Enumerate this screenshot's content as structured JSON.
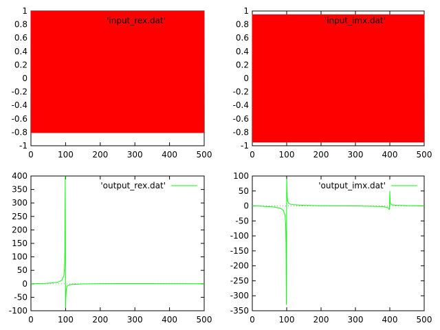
{
  "chart_data": [
    {
      "type": "line",
      "legend": "'input_rex.dat'",
      "legend_position": "top-right",
      "color": "#ff0000",
      "xlim": [
        0,
        500
      ],
      "ylim": [
        -1,
        1
      ],
      "xticks": [
        0,
        100,
        200,
        300,
        400,
        500
      ],
      "yticks": [
        -1,
        -0.8,
        -0.6,
        -0.4,
        -0.2,
        0,
        0.2,
        0.4,
        0.6,
        0.8,
        1
      ],
      "xtick_labels": [
        "0",
        "100",
        "200",
        "300",
        "400",
        "500"
      ],
      "ytick_labels": [
        "-1",
        "-0.8",
        "-0.6",
        "-0.4",
        "-0.2",
        "0",
        "0.2",
        "0.4",
        "0.6",
        "0.8",
        "1"
      ],
      "signal": {
        "form": "oscillation",
        "samples": 500,
        "high": 1.0,
        "low": -0.81
      }
    },
    {
      "type": "line",
      "legend": "'input_imx.dat'",
      "legend_position": "top-right",
      "color": "#ff0000",
      "xlim": [
        0,
        500
      ],
      "ylim": [
        -1,
        1
      ],
      "xticks": [
        0,
        100,
        200,
        300,
        400,
        500
      ],
      "yticks": [
        -1,
        -0.8,
        -0.6,
        -0.4,
        -0.2,
        0,
        0.2,
        0.4,
        0.6,
        0.8,
        1
      ],
      "xtick_labels": [
        "0",
        "100",
        "200",
        "300",
        "400",
        "500"
      ],
      "ytick_labels": [
        "-1",
        "-0.8",
        "-0.6",
        "-0.4",
        "-0.2",
        "0",
        "0.2",
        "0.4",
        "0.6",
        "0.8",
        "1"
      ],
      "signal": {
        "form": "oscillation",
        "samples": 500,
        "high": 0.95,
        "low": -0.95
      }
    },
    {
      "type": "line",
      "legend": "'output_rex.dat'",
      "legend_position": "top-right",
      "color": "#00ff00",
      "xlim": [
        0,
        500
      ],
      "ylim": [
        -100,
        400
      ],
      "xticks": [
        0,
        100,
        200,
        300,
        400,
        500
      ],
      "yticks": [
        -100,
        -50,
        0,
        50,
        100,
        150,
        200,
        250,
        300,
        350,
        400
      ],
      "xtick_labels": [
        "0",
        "100",
        "200",
        "300",
        "400",
        "500"
      ],
      "ytick_labels": [
        "-100",
        "-50",
        "0",
        "50",
        "100",
        "150",
        "200",
        "250",
        "300",
        "350",
        "400"
      ],
      "x": [
        0,
        20,
        40,
        60,
        80,
        90,
        95,
        97,
        98,
        99,
        100,
        101,
        102,
        103,
        105,
        110,
        120,
        150,
        200,
        250,
        300,
        350,
        400,
        450,
        500
      ],
      "y": [
        0,
        0.6,
        1.5,
        3,
        7,
        14,
        30,
        60,
        120,
        400,
        -90,
        -45,
        -25,
        -15,
        -8,
        -4,
        -2,
        -0.5,
        0.5,
        0.8,
        0.9,
        0.8,
        0.5,
        0.3,
        0
      ]
    },
    {
      "type": "line",
      "legend": "'output_imx.dat'",
      "legend_position": "top-right",
      "color": "#00ff00",
      "xlim": [
        0,
        500
      ],
      "ylim": [
        -350,
        100
      ],
      "xticks": [
        0,
        100,
        200,
        300,
        400,
        500
      ],
      "yticks": [
        -350,
        -300,
        -250,
        -200,
        -150,
        -100,
        -50,
        0,
        50,
        100
      ],
      "xtick_labels": [
        "0",
        "100",
        "200",
        "300",
        "400",
        "500"
      ],
      "ytick_labels": [
        "-350",
        "-300",
        "-250",
        "-200",
        "-150",
        "-100",
        "-50",
        "0",
        "50",
        "100"
      ],
      "x": [
        0,
        20,
        40,
        60,
        80,
        90,
        95,
        97,
        98,
        99,
        100,
        101,
        102,
        103,
        105,
        110,
        120,
        150,
        200,
        300,
        380,
        395,
        398,
        399,
        400,
        401,
        402,
        405,
        420,
        450,
        500
      ],
      "y": [
        0,
        -0.5,
        -1.5,
        -3,
        -7,
        -14,
        -30,
        -60,
        -120,
        -330,
        90,
        40,
        25,
        16,
        10,
        6,
        4,
        2,
        0.8,
        0,
        -2,
        -6,
        -12,
        -10,
        50,
        12,
        8,
        4,
        2,
        1,
        0
      ]
    }
  ]
}
